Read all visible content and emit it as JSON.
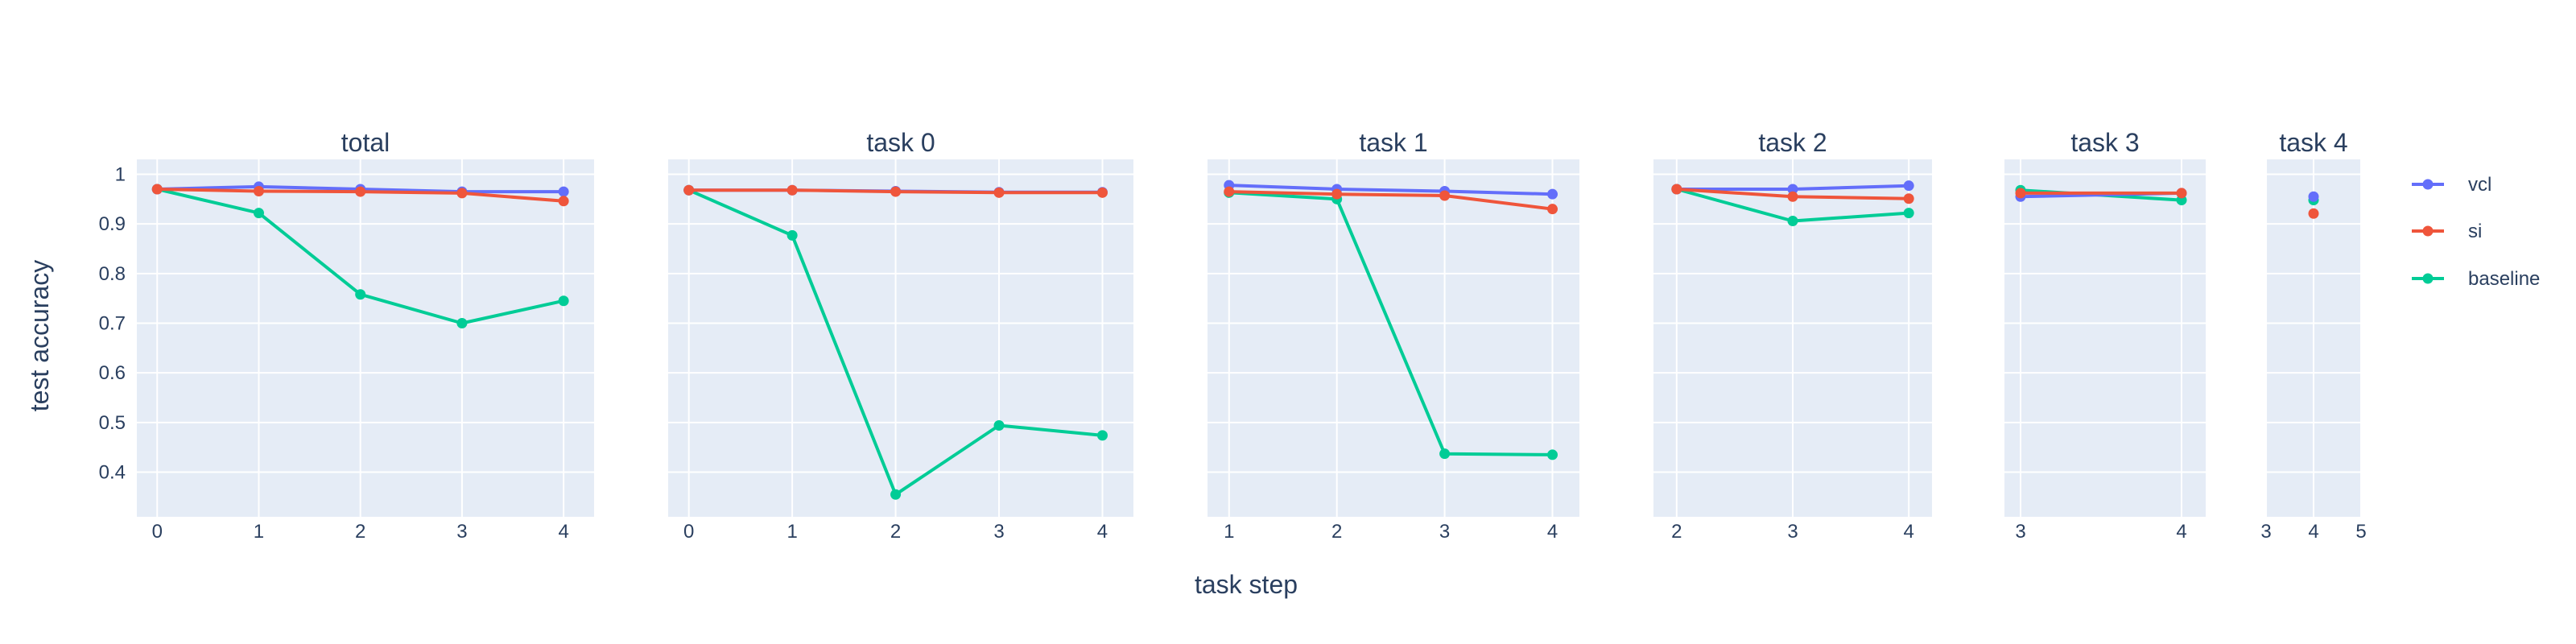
{
  "chart_data": {
    "type": "line",
    "ylabel": "test accuracy",
    "xlabel": "task step",
    "ylim": [
      0.31,
      1.03
    ],
    "yticks": [
      0.4,
      0.5,
      0.6,
      0.7,
      0.8,
      0.9,
      1
    ],
    "ytick_labels": [
      "0.4",
      "0.5",
      "0.6",
      "0.7",
      "0.8",
      "0.9",
      "1"
    ],
    "grid": true,
    "legend_position": "right",
    "series_styles": [
      {
        "name": "vcl",
        "color": "#636efa"
      },
      {
        "name": "si",
        "color": "#ef553b"
      },
      {
        "name": "baseline",
        "color": "#00cc96"
      }
    ],
    "panels": [
      {
        "title": "total",
        "xlim": [
          -0.2,
          4.3
        ],
        "xticks": [
          0,
          1,
          2,
          3,
          4
        ],
        "x": [
          0,
          1,
          2,
          3,
          4
        ],
        "series": [
          {
            "name": "vcl",
            "values": [
              0.97,
              0.975,
              0.97,
              0.965,
              0.965
            ]
          },
          {
            "name": "si",
            "values": [
              0.97,
              0.966,
              0.965,
              0.962,
              0.946
            ]
          },
          {
            "name": "baseline",
            "values": [
              0.97,
              0.922,
              0.758,
              0.7,
              0.745
            ]
          }
        ]
      },
      {
        "title": "task 0",
        "xlim": [
          -0.2,
          4.3
        ],
        "xticks": [
          0,
          1,
          2,
          3,
          4
        ],
        "x": [
          0,
          1,
          2,
          3,
          4
        ],
        "series": [
          {
            "name": "vcl",
            "values": [
              0.968,
              0.968,
              0.966,
              0.964,
              0.964
            ]
          },
          {
            "name": "si",
            "values": [
              0.968,
              0.968,
              0.965,
              0.963,
              0.963
            ]
          },
          {
            "name": "baseline",
            "values": [
              0.968,
              0.877,
              0.355,
              0.494,
              0.474
            ]
          }
        ]
      },
      {
        "title": "task 1",
        "xlim": [
          0.8,
          4.25
        ],
        "xticks": [
          1,
          2,
          3,
          4
        ],
        "x": [
          1,
          2,
          3,
          4
        ],
        "series": [
          {
            "name": "vcl",
            "values": [
              0.978,
              0.97,
              0.966,
              0.96
            ]
          },
          {
            "name": "si",
            "values": [
              0.965,
              0.96,
              0.957,
              0.93
            ]
          },
          {
            "name": "baseline",
            "values": [
              0.963,
              0.95,
              0.437,
              0.435
            ]
          }
        ]
      },
      {
        "title": "task 2",
        "xlim": [
          1.8,
          4.2
        ],
        "xticks": [
          2,
          3,
          4
        ],
        "x": [
          2,
          3,
          4
        ],
        "series": [
          {
            "name": "vcl",
            "values": [
              0.97,
              0.97,
              0.977
            ]
          },
          {
            "name": "si",
            "values": [
              0.97,
              0.955,
              0.951
            ]
          },
          {
            "name": "baseline",
            "values": [
              0.97,
              0.906,
              0.922
            ]
          }
        ]
      },
      {
        "title": "task 3",
        "xlim": [
          2.9,
          4.15
        ],
        "xticks": [
          3,
          4
        ],
        "x": [
          3,
          4
        ],
        "series": [
          {
            "name": "vcl",
            "values": [
              0.955,
              0.962
            ]
          },
          {
            "name": "si",
            "values": [
              0.962,
              0.962
            ]
          },
          {
            "name": "baseline",
            "values": [
              0.968,
              0.948
            ]
          }
        ]
      },
      {
        "title": "task 4",
        "xlim": [
          3,
          5
        ],
        "xticks": [
          3,
          4,
          5
        ],
        "x": [
          4
        ],
        "series": [
          {
            "name": "vcl",
            "values": [
              0.955
            ]
          },
          {
            "name": "si",
            "values": [
              0.921
            ]
          },
          {
            "name": "baseline",
            "values": [
              0.948
            ]
          }
        ]
      }
    ]
  }
}
